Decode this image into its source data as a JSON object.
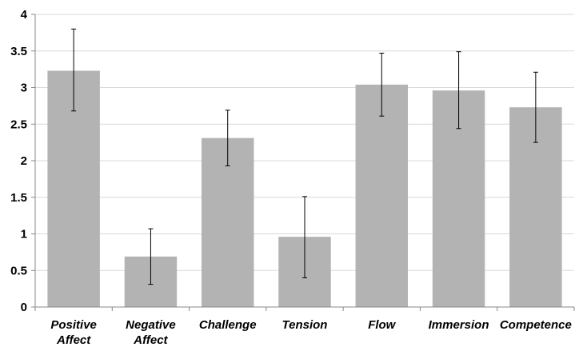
{
  "chart_data": {
    "type": "bar",
    "categories": [
      [
        "Positive",
        "Affect"
      ],
      [
        "Negative",
        "Affect"
      ],
      [
        "Challenge"
      ],
      [
        "Tension"
      ],
      [
        "Flow"
      ],
      [
        "Immersion"
      ],
      [
        "Competence"
      ]
    ],
    "values": [
      3.23,
      0.69,
      2.31,
      0.96,
      3.04,
      2.96,
      2.73
    ],
    "error_low": [
      2.68,
      0.31,
      1.93,
      0.4,
      2.61,
      2.44,
      2.25
    ],
    "error_high": [
      3.8,
      1.07,
      2.69,
      1.51,
      3.47,
      3.49,
      3.21
    ],
    "ylim": [
      0,
      4
    ],
    "yticks": [
      "0",
      "0.5",
      "1",
      "1.5",
      "2",
      "2.5",
      "3",
      "3.5",
      "4"
    ],
    "grid": true,
    "legend": "none",
    "colors": {
      "bar": "#b3b3b3",
      "grid": "#d9d9d9",
      "axis": "#888888",
      "error_bar": "#000000"
    }
  }
}
